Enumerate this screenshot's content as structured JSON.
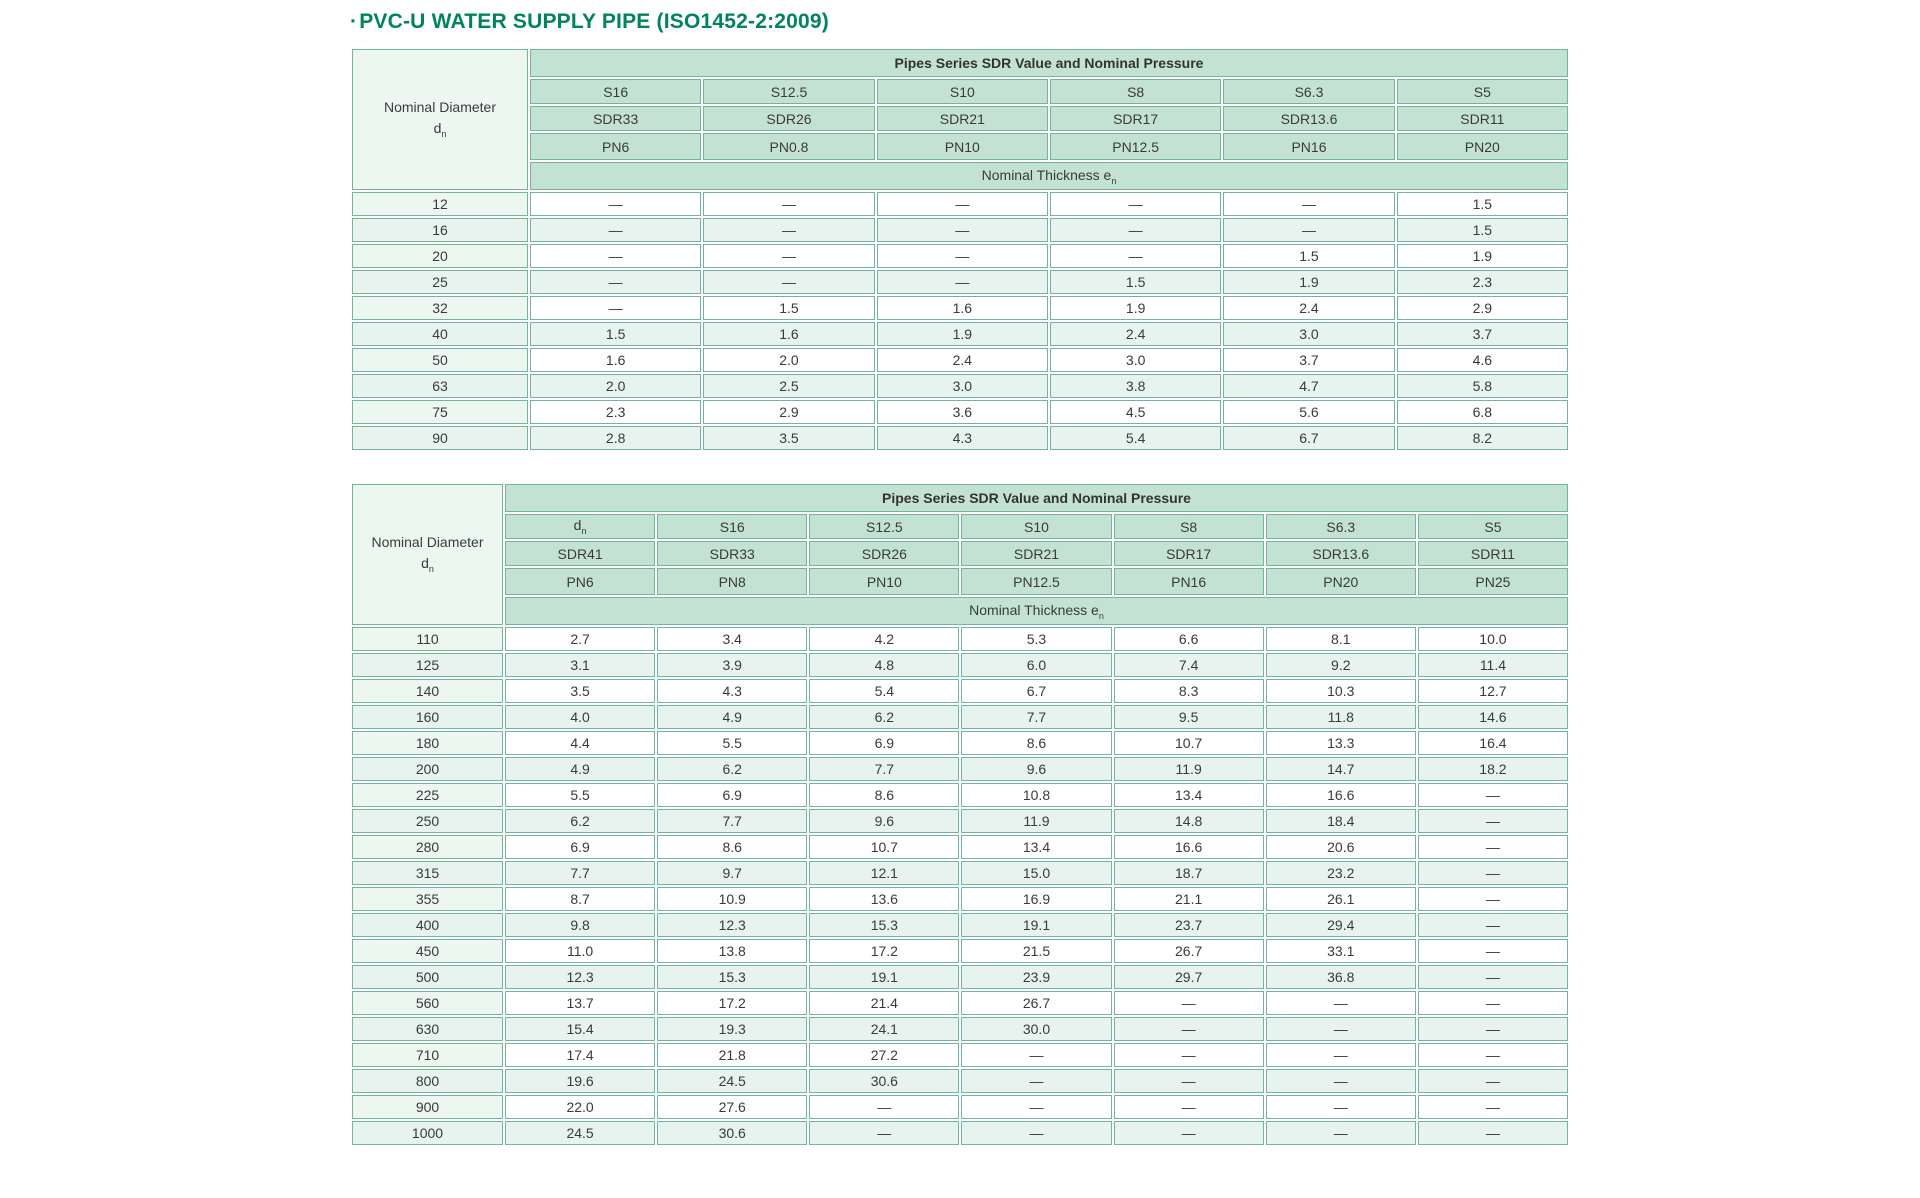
{
  "page": {
    "title_bullet": "·",
    "title": "PVC-U WATER SUPPLY PIPE (ISO1452-2:2009)"
  },
  "colors": {
    "title_green": "#00835f",
    "header_fill": "#c4e2d3",
    "row_tint": "#e7f3ee",
    "first_column_fill": "#ecf7f1",
    "border_green": "#74b59a"
  },
  "tables": [
    {
      "span_header": "Pipes Series SDR Value and Nominal Pressure",
      "corner": {
        "line1": "Nominal Diameter",
        "line2": [
          "d",
          "n"
        ]
      },
      "header_rows": [
        [
          "S16",
          "S12.5",
          "S10",
          "S8",
          "S6.3",
          "S5"
        ],
        [
          "SDR33",
          "SDR26",
          "SDR21",
          "SDR17",
          "SDR13.6",
          "SDR11"
        ],
        [
          "PN6",
          "PN0.8",
          "PN10",
          "PN12.5",
          "PN16",
          "PN20"
        ]
      ],
      "thickness_header": [
        "Nominal Thickness e",
        "n"
      ],
      "rows": [
        {
          "dn": "12",
          "values": [
            "—",
            "—",
            "—",
            "—",
            "—",
            "1.5"
          ]
        },
        {
          "dn": "16",
          "values": [
            "—",
            "—",
            "—",
            "—",
            "—",
            "1.5"
          ]
        },
        {
          "dn": "20",
          "values": [
            "—",
            "—",
            "—",
            "—",
            "1.5",
            "1.9"
          ]
        },
        {
          "dn": "25",
          "values": [
            "—",
            "—",
            "—",
            "1.5",
            "1.9",
            "2.3"
          ]
        },
        {
          "dn": "32",
          "values": [
            "—",
            "1.5",
            "1.6",
            "1.9",
            "2.4",
            "2.9"
          ]
        },
        {
          "dn": "40",
          "values": [
            "1.5",
            "1.6",
            "1.9",
            "2.4",
            "3.0",
            "3.7"
          ]
        },
        {
          "dn": "50",
          "values": [
            "1.6",
            "2.0",
            "2.4",
            "3.0",
            "3.7",
            "4.6"
          ]
        },
        {
          "dn": "63",
          "values": [
            "2.0",
            "2.5",
            "3.0",
            "3.8",
            "4.7",
            "5.8"
          ]
        },
        {
          "dn": "75",
          "values": [
            "2.3",
            "2.9",
            "3.6",
            "4.5",
            "5.6",
            "6.8"
          ]
        },
        {
          "dn": "90",
          "values": [
            "2.8",
            "3.5",
            "4.3",
            "5.4",
            "6.7",
            "8.2"
          ]
        }
      ]
    },
    {
      "span_header": "Pipes Series SDR Value and Nominal Pressure",
      "corner": {
        "line1": "Nominal Diameter",
        "line2": [
          "d",
          "n"
        ]
      },
      "header_rows": [
        [
          [
            "d",
            "n"
          ],
          "S16",
          "S12.5",
          "S10",
          "S8",
          "S6.3",
          "S5"
        ],
        [
          "SDR41",
          "SDR33",
          "SDR26",
          "SDR21",
          "SDR17",
          "SDR13.6",
          "SDR11"
        ],
        [
          "PN6",
          "PN8",
          "PN10",
          "PN12.5",
          "PN16",
          "PN20",
          "PN25"
        ]
      ],
      "thickness_header": [
        "Nominal Thickness e",
        "n"
      ],
      "rows": [
        {
          "dn": "110",
          "values": [
            "2.7",
            "3.4",
            "4.2",
            "5.3",
            "6.6",
            "8.1",
            "10.0"
          ]
        },
        {
          "dn": "125",
          "values": [
            "3.1",
            "3.9",
            "4.8",
            "6.0",
            "7.4",
            "9.2",
            "11.4"
          ]
        },
        {
          "dn": "140",
          "values": [
            "3.5",
            "4.3",
            "5.4",
            "6.7",
            "8.3",
            "10.3",
            "12.7"
          ]
        },
        {
          "dn": "160",
          "values": [
            "4.0",
            "4.9",
            "6.2",
            "7.7",
            "9.5",
            "11.8",
            "14.6"
          ]
        },
        {
          "dn": "180",
          "values": [
            "4.4",
            "5.5",
            "6.9",
            "8.6",
            "10.7",
            "13.3",
            "16.4"
          ]
        },
        {
          "dn": "200",
          "values": [
            "4.9",
            "6.2",
            "7.7",
            "9.6",
            "11.9",
            "14.7",
            "18.2"
          ]
        },
        {
          "dn": "225",
          "values": [
            "5.5",
            "6.9",
            "8.6",
            "10.8",
            "13.4",
            "16.6",
            "—"
          ]
        },
        {
          "dn": "250",
          "values": [
            "6.2",
            "7.7",
            "9.6",
            "11.9",
            "14.8",
            "18.4",
            "—"
          ]
        },
        {
          "dn": "280",
          "values": [
            "6.9",
            "8.6",
            "10.7",
            "13.4",
            "16.6",
            "20.6",
            "—"
          ]
        },
        {
          "dn": "315",
          "values": [
            "7.7",
            "9.7",
            "12.1",
            "15.0",
            "18.7",
            "23.2",
            "—"
          ]
        },
        {
          "dn": "355",
          "values": [
            "8.7",
            "10.9",
            "13.6",
            "16.9",
            "21.1",
            "26.1",
            "—"
          ]
        },
        {
          "dn": "400",
          "values": [
            "9.8",
            "12.3",
            "15.3",
            "19.1",
            "23.7",
            "29.4",
            "—"
          ]
        },
        {
          "dn": "450",
          "values": [
            "11.0",
            "13.8",
            "17.2",
            "21.5",
            "26.7",
            "33.1",
            "—"
          ]
        },
        {
          "dn": "500",
          "values": [
            "12.3",
            "15.3",
            "19.1",
            "23.9",
            "29.7",
            "36.8",
            "—"
          ]
        },
        {
          "dn": "560",
          "values": [
            "13.7",
            "17.2",
            "21.4",
            "26.7",
            "—",
            "—",
            "—"
          ]
        },
        {
          "dn": "630",
          "values": [
            "15.4",
            "19.3",
            "24.1",
            "30.0",
            "—",
            "—",
            "—"
          ]
        },
        {
          "dn": "710",
          "values": [
            "17.4",
            "21.8",
            "27.2",
            "—",
            "—",
            "—",
            "—"
          ]
        },
        {
          "dn": "800",
          "values": [
            "19.6",
            "24.5",
            "30.6",
            "—",
            "—",
            "—",
            "—"
          ]
        },
        {
          "dn": "900",
          "values": [
            "22.0",
            "27.6",
            "—",
            "—",
            "—",
            "—",
            "—"
          ]
        },
        {
          "dn": "1000",
          "values": [
            "24.5",
            "30.6",
            "—",
            "—",
            "—",
            "—",
            "—"
          ]
        }
      ]
    }
  ]
}
